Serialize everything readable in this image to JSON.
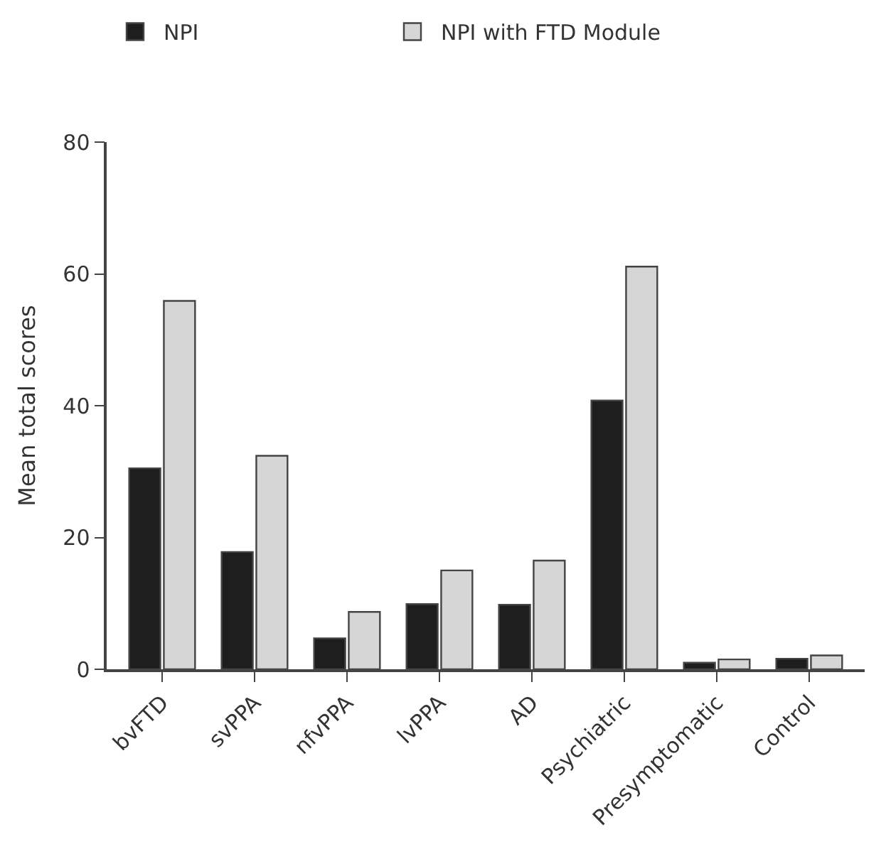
{
  "chart_data": {
    "type": "bar",
    "ylabel": "Mean total scores",
    "categories": [
      "bvFTD",
      "svPPA",
      "nfvPPA",
      "lvPPA",
      "AD",
      "Psychiatric",
      "Presymptomatic",
      "Control"
    ],
    "series": [
      {
        "name": "NPI",
        "color": "#1e1e1e",
        "values": [
          30.5,
          17.8,
          4.7,
          9.9,
          9.8,
          40.8,
          1.0,
          1.6
        ]
      },
      {
        "name": "NPI with FTD Module",
        "color": "#d6d6d6",
        "values": [
          55.9,
          32.4,
          8.7,
          15.0,
          16.5,
          61.1,
          1.5,
          2.1
        ]
      }
    ],
    "ylim": [
      0,
      80
    ],
    "yticks": [
      0,
      20,
      40,
      60,
      80
    ],
    "legend": "top left"
  }
}
